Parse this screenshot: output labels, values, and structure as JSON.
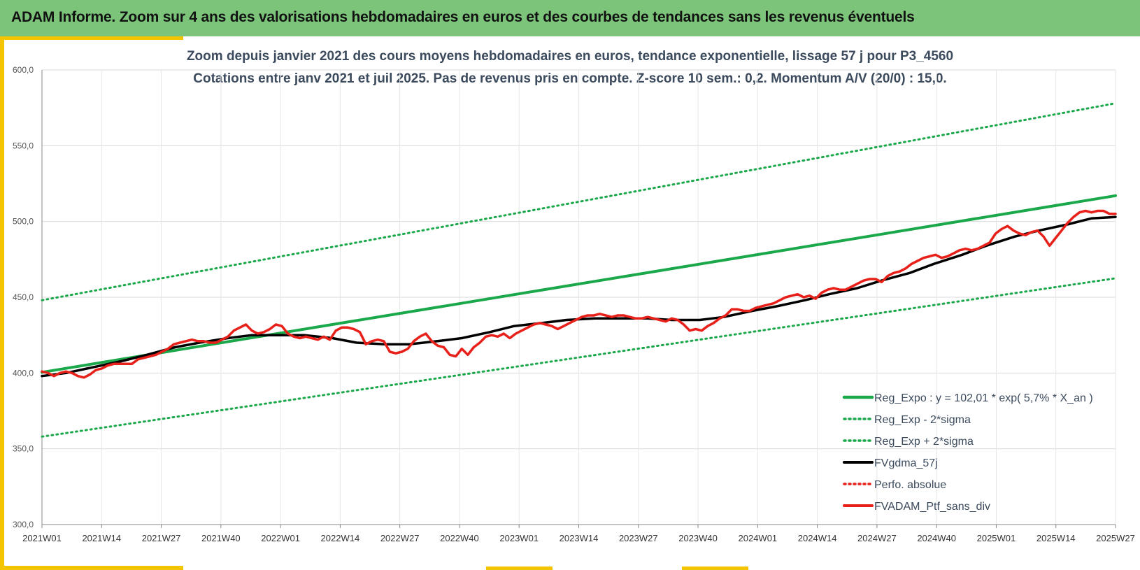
{
  "header": {
    "title": "ADAM Informe. Zoom sur 4 ans des valorisations hebdomadaires en euros et des courbes de tendances sans les revenus éventuels"
  },
  "colors": {
    "banner": "#7cc47a",
    "accent": "#f5c400",
    "trend": "#1aa84a",
    "smoothed": "#000000",
    "portfolio": "#e8201a"
  },
  "chart_data": {
    "type": "line",
    "title_line1": "Zoom depuis janvier 2021 des cours moyens hebdomadaires  en euros, tendance exponentielle, lissage 57 j pour P3_4560",
    "title_line2": "Cotations entre janv 2021 et juil 2025. Pas de revenus pris en compte. Z-score 10 sem.: 0,2. Momentum A/V (20/0) : 15,0.",
    "ylim": [
      300,
      600
    ],
    "y_ticks": [
      "300,0",
      "350,0",
      "400,0",
      "450,0",
      "500,0",
      "550,0",
      "600,0"
    ],
    "x_ticks": [
      "2021W01",
      "2021W14",
      "2021W27",
      "2021W40",
      "2022W01",
      "2022W14",
      "2022W27",
      "2022W40",
      "2023W01",
      "2023W14",
      "2023W27",
      "2023W40",
      "2024W01",
      "2024W14",
      "2024W27",
      "2024W40",
      "2025W01",
      "2025W14",
      "2025W27"
    ],
    "grid": true,
    "legend_position": "bottom-right",
    "series": [
      {
        "name": "Reg_Expo : y = 102,01 * exp( 5,7% *  X_an )",
        "style": "solid-thick",
        "color": "#1aa84a",
        "points": [
          [
            0,
            400.5
          ],
          [
            234,
            517.0
          ]
        ]
      },
      {
        "name": "Reg_Exp - 2*sigma",
        "style": "dotted",
        "color": "#1aa84a",
        "points": [
          [
            0,
            358.0
          ],
          [
            234,
            462.5
          ]
        ]
      },
      {
        "name": "Reg_Exp + 2*sigma",
        "style": "dotted",
        "color": "#1aa84a",
        "points": [
          [
            0,
            448.0
          ],
          [
            234,
            578.0
          ]
        ]
      },
      {
        "name": "FVgdma_57j",
        "style": "solid",
        "color": "#000000",
        "points": [
          [
            0,
            398
          ],
          [
            6,
            400
          ],
          [
            13,
            404
          ],
          [
            20,
            408
          ],
          [
            26,
            412
          ],
          [
            33,
            417
          ],
          [
            39,
            420
          ],
          [
            46,
            423
          ],
          [
            52,
            425
          ],
          [
            59,
            425
          ],
          [
            65,
            425
          ],
          [
            72,
            423
          ],
          [
            78,
            420
          ],
          [
            85,
            419
          ],
          [
            91,
            419
          ],
          [
            98,
            421
          ],
          [
            104,
            423
          ],
          [
            111,
            427
          ],
          [
            117,
            431
          ],
          [
            124,
            433
          ],
          [
            130,
            435
          ],
          [
            137,
            436
          ],
          [
            143,
            436
          ],
          [
            150,
            436
          ],
          [
            156,
            435
          ],
          [
            163,
            435
          ],
          [
            169,
            437
          ],
          [
            176,
            441
          ],
          [
            182,
            444
          ],
          [
            189,
            448
          ],
          [
            195,
            452
          ],
          [
            202,
            456
          ],
          [
            208,
            461
          ],
          [
            215,
            466
          ],
          [
            221,
            472
          ],
          [
            228,
            478
          ],
          [
            234,
            484
          ],
          [
            241,
            490
          ],
          [
            247,
            494
          ],
          [
            254,
            498
          ],
          [
            260,
            502
          ],
          [
            266,
            503
          ]
        ]
      },
      {
        "name": "Perfo. absolue",
        "style": "dotted",
        "color": "#e8201a",
        "points": []
      },
      {
        "name": "FVADAM_Ptf_sans_div",
        "style": "solid",
        "color": "#e8201a",
        "points": [
          [
            0,
            401
          ],
          [
            2,
            400
          ],
          [
            4,
            398
          ],
          [
            6,
            400
          ],
          [
            8,
            401
          ],
          [
            10,
            400
          ],
          [
            12,
            398
          ],
          [
            14,
            397
          ],
          [
            16,
            399
          ],
          [
            18,
            402
          ],
          [
            20,
            403
          ],
          [
            22,
            405
          ],
          [
            24,
            406
          ],
          [
            26,
            406
          ],
          [
            28,
            406
          ],
          [
            30,
            406
          ],
          [
            32,
            409
          ],
          [
            34,
            410
          ],
          [
            36,
            411
          ],
          [
            38,
            412
          ],
          [
            40,
            414
          ],
          [
            42,
            416
          ],
          [
            44,
            419
          ],
          [
            46,
            420
          ],
          [
            48,
            421
          ],
          [
            50,
            422
          ],
          [
            52,
            421
          ],
          [
            54,
            421
          ],
          [
            56,
            420
          ],
          [
            58,
            420
          ],
          [
            60,
            422
          ],
          [
            62,
            424
          ],
          [
            64,
            428
          ],
          [
            66,
            430
          ],
          [
            68,
            432
          ],
          [
            70,
            428
          ],
          [
            72,
            426
          ],
          [
            74,
            427
          ],
          [
            76,
            429
          ],
          [
            78,
            432
          ],
          [
            80,
            431
          ],
          [
            82,
            426
          ],
          [
            84,
            424
          ],
          [
            86,
            423
          ],
          [
            88,
            424
          ],
          [
            90,
            423
          ],
          [
            92,
            422
          ],
          [
            94,
            424
          ],
          [
            96,
            422
          ],
          [
            98,
            428
          ],
          [
            100,
            430
          ],
          [
            102,
            430
          ],
          [
            104,
            429
          ],
          [
            106,
            427
          ],
          [
            108,
            419
          ],
          [
            110,
            421
          ],
          [
            112,
            422
          ],
          [
            114,
            421
          ],
          [
            116,
            414
          ],
          [
            118,
            413
          ],
          [
            120,
            414
          ],
          [
            122,
            416
          ],
          [
            124,
            421
          ],
          [
            126,
            424
          ],
          [
            128,
            426
          ],
          [
            130,
            421
          ],
          [
            132,
            418
          ],
          [
            134,
            417
          ],
          [
            136,
            412
          ],
          [
            138,
            411
          ],
          [
            140,
            416
          ],
          [
            142,
            412
          ],
          [
            144,
            417
          ],
          [
            146,
            420
          ],
          [
            148,
            424
          ],
          [
            150,
            425
          ],
          [
            152,
            424
          ],
          [
            154,
            426
          ],
          [
            156,
            423
          ],
          [
            158,
            426
          ],
          [
            160,
            428
          ],
          [
            162,
            430
          ],
          [
            164,
            432
          ],
          [
            166,
            433
          ],
          [
            168,
            432
          ],
          [
            170,
            431
          ],
          [
            172,
            429
          ],
          [
            174,
            431
          ],
          [
            176,
            433
          ],
          [
            178,
            435
          ],
          [
            180,
            437
          ],
          [
            182,
            438
          ],
          [
            184,
            438
          ],
          [
            186,
            439
          ],
          [
            188,
            438
          ],
          [
            190,
            437
          ],
          [
            192,
            438
          ],
          [
            194,
            438
          ],
          [
            196,
            437
          ],
          [
            198,
            436
          ],
          [
            200,
            436
          ],
          [
            202,
            437
          ],
          [
            204,
            436
          ],
          [
            206,
            435
          ],
          [
            208,
            434
          ],
          [
            210,
            436
          ],
          [
            212,
            435
          ],
          [
            214,
            432
          ],
          [
            216,
            428
          ],
          [
            218,
            429
          ],
          [
            220,
            428
          ],
          [
            222,
            431
          ],
          [
            224,
            433
          ],
          [
            226,
            436
          ],
          [
            228,
            438
          ],
          [
            230,
            442
          ],
          [
            232,
            442
          ],
          [
            234,
            441
          ],
          [
            236,
            441
          ],
          [
            238,
            443
          ],
          [
            240,
            444
          ],
          [
            242,
            445
          ],
          [
            244,
            446
          ],
          [
            246,
            448
          ],
          [
            248,
            450
          ],
          [
            250,
            451
          ],
          [
            252,
            452
          ],
          [
            254,
            450
          ],
          [
            256,
            451
          ],
          [
            258,
            449
          ],
          [
            260,
            453
          ],
          [
            262,
            455
          ],
          [
            264,
            456
          ],
          [
            266,
            455
          ],
          [
            268,
            455
          ],
          [
            270,
            457
          ],
          [
            272,
            459
          ],
          [
            274,
            461
          ],
          [
            276,
            462
          ],
          [
            278,
            462
          ],
          [
            280,
            460
          ],
          [
            282,
            464
          ],
          [
            284,
            466
          ],
          [
            286,
            467
          ],
          [
            288,
            469
          ],
          [
            290,
            472
          ],
          [
            292,
            474
          ],
          [
            294,
            476
          ],
          [
            296,
            477
          ],
          [
            298,
            478
          ],
          [
            300,
            476
          ],
          [
            302,
            477
          ],
          [
            304,
            479
          ],
          [
            306,
            481
          ],
          [
            308,
            482
          ],
          [
            310,
            481
          ],
          [
            312,
            482
          ],
          [
            314,
            484
          ],
          [
            316,
            486
          ],
          [
            318,
            492
          ],
          [
            320,
            495
          ],
          [
            322,
            497
          ],
          [
            324,
            494
          ],
          [
            326,
            492
          ],
          [
            328,
            491
          ],
          [
            330,
            493
          ],
          [
            332,
            494
          ],
          [
            334,
            490
          ],
          [
            336,
            484
          ],
          [
            338,
            489
          ],
          [
            340,
            494
          ],
          [
            342,
            499
          ],
          [
            344,
            503
          ],
          [
            346,
            506
          ],
          [
            348,
            507
          ],
          [
            350,
            506
          ],
          [
            352,
            507
          ],
          [
            354,
            507
          ],
          [
            356,
            505
          ],
          [
            358,
            505
          ]
        ]
      }
    ]
  }
}
